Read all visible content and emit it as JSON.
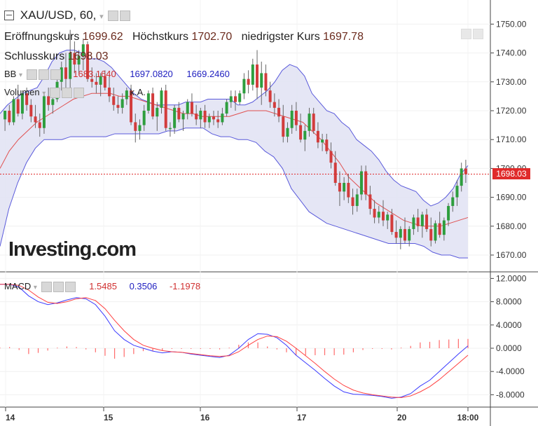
{
  "header": {
    "symbol": "XAU/USD, 60,",
    "open_label": "Eröffnungskurs",
    "open_value": "1699.62",
    "high_label": "Höchstkurs",
    "high_value": "1702.70",
    "low_label": "niedrigster Kurs",
    "low_value": "1697.78",
    "close_label": "Schlusskurs",
    "close_value": "1698.03"
  },
  "indicators": {
    "bb_label": "BB",
    "bb_values": [
      "1683.1640",
      "1697.0820",
      "1669.2460"
    ],
    "bb_colors": [
      "#d03030",
      "#2020c0",
      "#2020c0"
    ],
    "volume_label": "Volumen",
    "volume_value": "k.A.",
    "macd_label": "MACD",
    "macd_values": [
      "1.5485",
      "0.3506",
      "-1.1978"
    ],
    "macd_colors": [
      "#d03030",
      "#2020c0",
      "#d03030"
    ]
  },
  "watermark": "Investing.com",
  "price_badge": "1698.03",
  "colors": {
    "up": "#2e9e3e",
    "down": "#d23c3c",
    "bb_band": "#5a5adb",
    "bb_fill": "#e2e3f4",
    "mid": "#e05050",
    "macd": "#3a3aff",
    "signal": "#ff4040"
  },
  "chart_data": [
    {
      "type": "candlestick",
      "series_name": "XAU/USD",
      "y_axis": {
        "ticks": [
          1670,
          1680,
          1690,
          1700,
          1710,
          1720,
          1730,
          1740,
          1750
        ],
        "labels": [
          "1670.00",
          "1680.00",
          "1690.00",
          "1700.00",
          "1710.00",
          "1720.00",
          "1730.00",
          "1740.00",
          "1750.00"
        ]
      },
      "x_axis": {
        "labels": [
          "14",
          "15",
          "16",
          "17",
          "20",
          "18:00"
        ]
      },
      "last_price": 1698.03,
      "candles": [
        {
          "o": 1717,
          "h": 1720,
          "l": 1713,
          "c": 1720
        },
        {
          "o": 1720,
          "h": 1722,
          "l": 1715,
          "c": 1716
        },
        {
          "o": 1716,
          "h": 1725,
          "l": 1715,
          "c": 1724
        },
        {
          "o": 1724,
          "h": 1729,
          "l": 1718,
          "c": 1719
        },
        {
          "o": 1719,
          "h": 1726,
          "l": 1717,
          "c": 1726
        },
        {
          "o": 1726,
          "h": 1728,
          "l": 1720,
          "c": 1722
        },
        {
          "o": 1722,
          "h": 1724,
          "l": 1716,
          "c": 1718
        },
        {
          "o": 1718,
          "h": 1722,
          "l": 1714,
          "c": 1716
        },
        {
          "o": 1716,
          "h": 1719,
          "l": 1711,
          "c": 1714
        },
        {
          "o": 1714,
          "h": 1726,
          "l": 1712,
          "c": 1725
        },
        {
          "o": 1725,
          "h": 1728,
          "l": 1720,
          "c": 1722
        },
        {
          "o": 1722,
          "h": 1727,
          "l": 1719,
          "c": 1724
        },
        {
          "o": 1724,
          "h": 1732,
          "l": 1723,
          "c": 1730
        },
        {
          "o": 1730,
          "h": 1737,
          "l": 1727,
          "c": 1735
        },
        {
          "o": 1735,
          "h": 1740,
          "l": 1728,
          "c": 1731
        },
        {
          "o": 1731,
          "h": 1748,
          "l": 1728,
          "c": 1740
        },
        {
          "o": 1740,
          "h": 1744,
          "l": 1733,
          "c": 1736
        },
        {
          "o": 1736,
          "h": 1741,
          "l": 1733,
          "c": 1739
        },
        {
          "o": 1739,
          "h": 1745,
          "l": 1734,
          "c": 1743
        },
        {
          "o": 1743,
          "h": 1744,
          "l": 1730,
          "c": 1731
        },
        {
          "o": 1731,
          "h": 1735,
          "l": 1728,
          "c": 1730
        },
        {
          "o": 1730,
          "h": 1733,
          "l": 1726,
          "c": 1729
        },
        {
          "o": 1729,
          "h": 1733,
          "l": 1725,
          "c": 1732
        },
        {
          "o": 1732,
          "h": 1734,
          "l": 1727,
          "c": 1728
        },
        {
          "o": 1728,
          "h": 1732,
          "l": 1723,
          "c": 1725
        },
        {
          "o": 1725,
          "h": 1728,
          "l": 1720,
          "c": 1722
        },
        {
          "o": 1722,
          "h": 1725,
          "l": 1719,
          "c": 1721
        },
        {
          "o": 1721,
          "h": 1726,
          "l": 1719,
          "c": 1724
        },
        {
          "o": 1724,
          "h": 1728,
          "l": 1722,
          "c": 1727
        },
        {
          "o": 1727,
          "h": 1729,
          "l": 1715,
          "c": 1716
        },
        {
          "o": 1716,
          "h": 1719,
          "l": 1709,
          "c": 1713
        },
        {
          "o": 1713,
          "h": 1717,
          "l": 1710,
          "c": 1715
        },
        {
          "o": 1715,
          "h": 1722,
          "l": 1713,
          "c": 1720
        },
        {
          "o": 1720,
          "h": 1727,
          "l": 1719,
          "c": 1726
        },
        {
          "o": 1726,
          "h": 1728,
          "l": 1717,
          "c": 1718
        },
        {
          "o": 1718,
          "h": 1723,
          "l": 1713,
          "c": 1721
        },
        {
          "o": 1721,
          "h": 1728,
          "l": 1719,
          "c": 1727
        },
        {
          "o": 1727,
          "h": 1729,
          "l": 1713,
          "c": 1714
        },
        {
          "o": 1714,
          "h": 1716,
          "l": 1711,
          "c": 1714
        },
        {
          "o": 1714,
          "h": 1722,
          "l": 1712,
          "c": 1721
        },
        {
          "o": 1721,
          "h": 1723,
          "l": 1716,
          "c": 1717
        },
        {
          "o": 1717,
          "h": 1720,
          "l": 1713,
          "c": 1719
        },
        {
          "o": 1719,
          "h": 1724,
          "l": 1717,
          "c": 1723
        },
        {
          "o": 1723,
          "h": 1726,
          "l": 1718,
          "c": 1719
        },
        {
          "o": 1719,
          "h": 1722,
          "l": 1715,
          "c": 1717
        },
        {
          "o": 1717,
          "h": 1721,
          "l": 1714,
          "c": 1720
        },
        {
          "o": 1720,
          "h": 1722,
          "l": 1714,
          "c": 1716
        },
        {
          "o": 1716,
          "h": 1719,
          "l": 1714,
          "c": 1718
        },
        {
          "o": 1718,
          "h": 1720,
          "l": 1715,
          "c": 1717
        },
        {
          "o": 1717,
          "h": 1720,
          "l": 1714,
          "c": 1716
        },
        {
          "o": 1716,
          "h": 1721,
          "l": 1715,
          "c": 1719
        },
        {
          "o": 1719,
          "h": 1724,
          "l": 1718,
          "c": 1723
        },
        {
          "o": 1723,
          "h": 1727,
          "l": 1721,
          "c": 1725
        },
        {
          "o": 1725,
          "h": 1727,
          "l": 1720,
          "c": 1723
        },
        {
          "o": 1723,
          "h": 1727,
          "l": 1722,
          "c": 1726
        },
        {
          "o": 1726,
          "h": 1733,
          "l": 1724,
          "c": 1731
        },
        {
          "o": 1731,
          "h": 1734,
          "l": 1726,
          "c": 1729
        },
        {
          "o": 1729,
          "h": 1738,
          "l": 1727,
          "c": 1736
        },
        {
          "o": 1736,
          "h": 1741,
          "l": 1724,
          "c": 1728
        },
        {
          "o": 1728,
          "h": 1737,
          "l": 1722,
          "c": 1733
        },
        {
          "o": 1733,
          "h": 1736,
          "l": 1725,
          "c": 1727
        },
        {
          "o": 1727,
          "h": 1730,
          "l": 1721,
          "c": 1723
        },
        {
          "o": 1723,
          "h": 1726,
          "l": 1718,
          "c": 1721
        },
        {
          "o": 1721,
          "h": 1724,
          "l": 1716,
          "c": 1718
        },
        {
          "o": 1718,
          "h": 1722,
          "l": 1709,
          "c": 1711
        },
        {
          "o": 1711,
          "h": 1716,
          "l": 1709,
          "c": 1714
        },
        {
          "o": 1714,
          "h": 1722,
          "l": 1712,
          "c": 1720
        },
        {
          "o": 1720,
          "h": 1723,
          "l": 1713,
          "c": 1715
        },
        {
          "o": 1715,
          "h": 1719,
          "l": 1709,
          "c": 1710
        },
        {
          "o": 1710,
          "h": 1715,
          "l": 1706,
          "c": 1713
        },
        {
          "o": 1713,
          "h": 1721,
          "l": 1711,
          "c": 1719
        },
        {
          "o": 1719,
          "h": 1721,
          "l": 1712,
          "c": 1713
        },
        {
          "o": 1713,
          "h": 1716,
          "l": 1707,
          "c": 1709
        },
        {
          "o": 1709,
          "h": 1712,
          "l": 1706,
          "c": 1710
        },
        {
          "o": 1710,
          "h": 1712,
          "l": 1705,
          "c": 1706
        },
        {
          "o": 1706,
          "h": 1709,
          "l": 1700,
          "c": 1702
        },
        {
          "o": 1702,
          "h": 1706,
          "l": 1694,
          "c": 1695
        },
        {
          "o": 1695,
          "h": 1699,
          "l": 1687,
          "c": 1692
        },
        {
          "o": 1692,
          "h": 1697,
          "l": 1689,
          "c": 1695
        },
        {
          "o": 1695,
          "h": 1698,
          "l": 1688,
          "c": 1690
        },
        {
          "o": 1690,
          "h": 1693,
          "l": 1684,
          "c": 1687
        },
        {
          "o": 1687,
          "h": 1693,
          "l": 1685,
          "c": 1691
        },
        {
          "o": 1691,
          "h": 1701,
          "l": 1689,
          "c": 1699
        },
        {
          "o": 1699,
          "h": 1701,
          "l": 1689,
          "c": 1691
        },
        {
          "o": 1691,
          "h": 1694,
          "l": 1684,
          "c": 1686
        },
        {
          "o": 1686,
          "h": 1689,
          "l": 1681,
          "c": 1683
        },
        {
          "o": 1683,
          "h": 1687,
          "l": 1681,
          "c": 1685
        },
        {
          "o": 1685,
          "h": 1689,
          "l": 1680,
          "c": 1682
        },
        {
          "o": 1682,
          "h": 1685,
          "l": 1679,
          "c": 1684
        },
        {
          "o": 1684,
          "h": 1686,
          "l": 1677,
          "c": 1678
        },
        {
          "o": 1678,
          "h": 1682,
          "l": 1674,
          "c": 1676
        },
        {
          "o": 1676,
          "h": 1680,
          "l": 1672,
          "c": 1679
        },
        {
          "o": 1679,
          "h": 1683,
          "l": 1674,
          "c": 1675
        },
        {
          "o": 1675,
          "h": 1680,
          "l": 1673,
          "c": 1679
        },
        {
          "o": 1679,
          "h": 1684,
          "l": 1677,
          "c": 1683
        },
        {
          "o": 1683,
          "h": 1686,
          "l": 1678,
          "c": 1680
        },
        {
          "o": 1680,
          "h": 1685,
          "l": 1676,
          "c": 1684
        },
        {
          "o": 1684,
          "h": 1686,
          "l": 1678,
          "c": 1679
        },
        {
          "o": 1679,
          "h": 1683,
          "l": 1673,
          "c": 1675
        },
        {
          "o": 1675,
          "h": 1682,
          "l": 1674,
          "c": 1681
        },
        {
          "o": 1681,
          "h": 1685,
          "l": 1676,
          "c": 1677
        },
        {
          "o": 1677,
          "h": 1683,
          "l": 1675,
          "c": 1682
        },
        {
          "o": 1682,
          "h": 1688,
          "l": 1680,
          "c": 1687
        },
        {
          "o": 1687,
          "h": 1692,
          "l": 1685,
          "c": 1690
        },
        {
          "o": 1690,
          "h": 1696,
          "l": 1687,
          "c": 1694
        },
        {
          "o": 1694,
          "h": 1702,
          "l": 1692,
          "c": 1700
        },
        {
          "o": 1700,
          "h": 1703,
          "l": 1695,
          "c": 1698
        }
      ],
      "bb_upper": [
        1719,
        1722,
        1724,
        1726,
        1727,
        1728,
        1732,
        1737,
        1740,
        1741,
        1741,
        1740,
        1738,
        1738,
        1737,
        1735,
        1732,
        1729,
        1726,
        1724,
        1723,
        1722,
        1722,
        1722,
        1722,
        1723,
        1723,
        1723,
        1724,
        1724,
        1724,
        1724,
        1722,
        1722,
        1723,
        1725,
        1727,
        1730,
        1734,
        1736,
        1735,
        1732,
        1726,
        1723,
        1720,
        1719,
        1716,
        1714,
        1710,
        1708,
        1706,
        1703,
        1699,
        1696,
        1694,
        1693,
        1692,
        1689,
        1687,
        1688,
        1690,
        1693,
        1698,
        1701
      ],
      "bb_lower": [
        1673,
        1686,
        1695,
        1702,
        1707,
        1710,
        1710,
        1710,
        1711,
        1711,
        1711,
        1711,
        1711,
        1712,
        1712,
        1712,
        1712,
        1712,
        1712,
        1713,
        1713,
        1714,
        1714,
        1714,
        1712,
        1711,
        1711,
        1710,
        1710,
        1709,
        1706,
        1704,
        1700,
        1693,
        1689,
        1685,
        1683,
        1681,
        1680,
        1679,
        1678,
        1677,
        1676,
        1675,
        1674,
        1674,
        1674,
        1674,
        1673,
        1671,
        1670,
        1670,
        1669,
        1669
      ],
      "bb_middle": [
        1700,
        1706,
        1710,
        1713,
        1716,
        1718,
        1720,
        1722,
        1724,
        1725,
        1726,
        1726,
        1726,
        1725,
        1725,
        1724,
        1723,
        1722,
        1721,
        1720,
        1719,
        1719,
        1718,
        1718,
        1718,
        1718,
        1719,
        1720,
        1720,
        1720,
        1719,
        1718,
        1717,
        1716,
        1713,
        1710,
        1706,
        1702,
        1697,
        1694,
        1691,
        1688,
        1686,
        1684,
        1682,
        1681,
        1680,
        1680,
        1680,
        1681,
        1682,
        1683
      ]
    },
    {
      "type": "line",
      "title": "MACD",
      "y_axis": {
        "ticks": [
          -8,
          -4,
          0,
          4,
          8,
          12
        ],
        "labels": [
          "-8.0000",
          "-4.0000",
          "0.0000",
          "4.0000",
          "8.0000",
          "12.0000"
        ]
      },
      "series": [
        {
          "name": "MACD",
          "color": "#3a3aff",
          "values": [
            11,
            11,
            10.5,
            9,
            8,
            7.5,
            7.8,
            8.3,
            8.7,
            8.5,
            7.5,
            5.5,
            3,
            1.5,
            0.5,
            0,
            -0.5,
            -0.8,
            -0.6,
            -0.7,
            -1,
            -1.2,
            -1.4,
            -1.6,
            -1.2,
            0,
            1.5,
            2.5,
            2.4,
            1.8,
            0.5,
            -1.2,
            -2.5,
            -3.8,
            -5.2,
            -6.5,
            -7.5,
            -7.9,
            -8,
            -8.1,
            -8.3,
            -8.6,
            -8.4,
            -7.8,
            -6.5,
            -5.5,
            -4,
            -2.5,
            -1,
            0.4
          ]
        },
        {
          "name": "Signal",
          "color": "#ff4040",
          "values": [
            11,
            11,
            10.8,
            10,
            8.8,
            7.9,
            7.7,
            8,
            8.5,
            8.7,
            8.2,
            6.8,
            4.8,
            3,
            1.5,
            0.5,
            0,
            -0.4,
            -0.6,
            -0.7,
            -0.9,
            -1.1,
            -1.3,
            -1.4,
            -1.3,
            -0.6,
            0.5,
            1.5,
            2.1,
            2,
            1.2,
            0,
            -1.3,
            -2.6,
            -4,
            -5.3,
            -6.4,
            -7.2,
            -7.7,
            -8,
            -8.2,
            -8.4,
            -8.5,
            -8.2,
            -7.5,
            -6.6,
            -5.4,
            -4,
            -2.6,
            -1.2
          ]
        }
      ],
      "histogram": [
        0.1,
        0.2,
        -0.3,
        -1,
        -0.8,
        -0.4,
        0.1,
        0.3,
        0.2,
        -0.2,
        -0.7,
        -1.3,
        -1.8,
        -1.5,
        -1,
        -0.5,
        -0.5,
        -0.4,
        0,
        0,
        -0.1,
        -0.1,
        -0.1,
        -0.2,
        0.1,
        0.6,
        1,
        1,
        0.3,
        -0.2,
        -0.7,
        -1.2,
        -1.2,
        -1.2,
        -1.2,
        -1.2,
        -1.1,
        -0.7,
        -0.3,
        -0.1,
        -0.1,
        -0.2,
        0.1,
        0.4,
        1,
        1.1,
        1.4,
        1.5,
        1.6,
        1.6
      ]
    }
  ]
}
